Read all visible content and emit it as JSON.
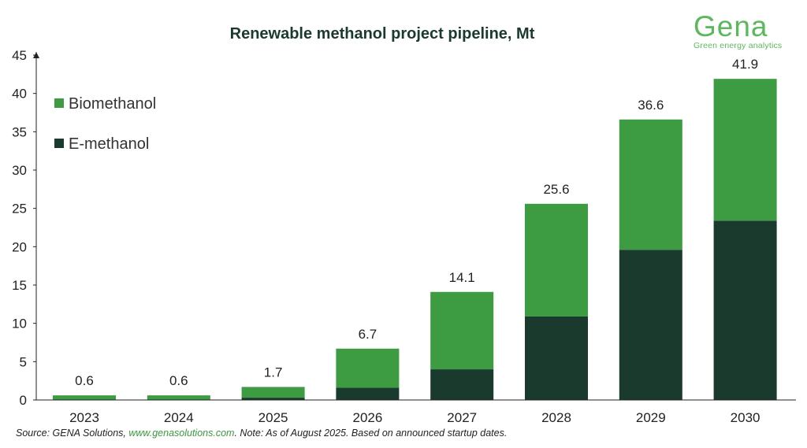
{
  "chart_data": {
    "type": "bar",
    "stacked": true,
    "title": "Renewable methanol project pipeline, Mt",
    "categories": [
      "2023",
      "2024",
      "2025",
      "2026",
      "2027",
      "2028",
      "2029",
      "2030"
    ],
    "series": [
      {
        "name": "E-methanol",
        "color": "#1a3a2d",
        "values": [
          0.0,
          0.0,
          0.3,
          1.6,
          4.0,
          10.9,
          19.6,
          23.4
        ]
      },
      {
        "name": "Biomethanol",
        "color": "#3d9b41",
        "values": [
          0.6,
          0.6,
          1.4,
          5.1,
          10.1,
          14.7,
          17.0,
          18.5
        ]
      }
    ],
    "totals": [
      "0.6",
      "0.6",
      "1.7",
      "6.7",
      "14.1",
      "25.6",
      "36.6",
      "41.9"
    ],
    "ylim": [
      0,
      45
    ],
    "yticks": [
      0,
      5,
      10,
      15,
      20,
      25,
      30,
      35,
      40,
      45
    ],
    "legend": {
      "position": "top-left",
      "items": [
        "Biomethanol",
        "E-methanol"
      ]
    },
    "grid": false
  },
  "logo": {
    "name": "Gena",
    "tagline": "Green energy analytics"
  },
  "footer": {
    "prefix": "Source: GENA Solutions, ",
    "link": "www.genasolutions.com",
    "suffix": ". Note: As of August 2025. Based on announced startup dates."
  }
}
